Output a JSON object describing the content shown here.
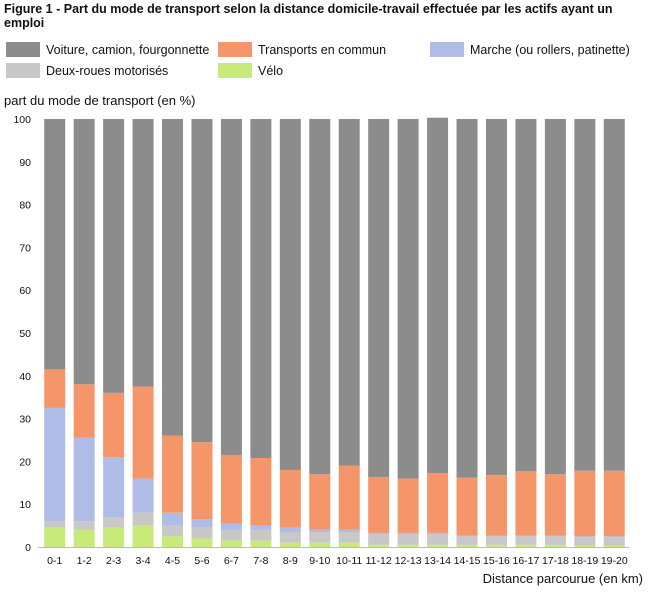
{
  "title": "Figure 1 - Part du mode de transport selon la distance domicile-travail effectuée par les actifs ayant un emploi",
  "chart_data": {
    "type": "bar",
    "stacked": true,
    "ylabel": "part du mode de transport (en %)",
    "xlabel": "Distance parcourue (en km)",
    "ylim": [
      0,
      100
    ],
    "yticks": [
      0,
      10,
      20,
      30,
      40,
      50,
      60,
      70,
      80,
      90,
      100
    ],
    "grid": false,
    "legend_position": "top",
    "categories": [
      "0-1",
      "1-2",
      "2-3",
      "3-4",
      "4-5",
      "5-6",
      "6-7",
      "7-8",
      "8-9",
      "9-10",
      "10-11",
      "11-12",
      "12-13",
      "13-14",
      "14-15",
      "15-16",
      "16-17",
      "17-18",
      "18-19",
      "19-20"
    ],
    "series": [
      {
        "name": "Vélo",
        "color": "#c8ea7a",
        "values": [
          4.5,
          4.0,
          4.5,
          5.0,
          2.5,
          2.0,
          1.5,
          1.5,
          1.0,
          1.0,
          1.0,
          0.5,
          0.5,
          0.5,
          0.5,
          0.5,
          0.5,
          0.5,
          0.3,
          0.3
        ]
      },
      {
        "name": "Deux-roues motorisés",
        "color": "#c8c8c8",
        "values": [
          1.5,
          2.0,
          2.5,
          3.0,
          2.5,
          2.5,
          2.5,
          2.5,
          2.5,
          2.5,
          2.5,
          2.5,
          2.5,
          2.5,
          2.0,
          2.0,
          2.0,
          2.0,
          2.0,
          2.0
        ]
      },
      {
        "name": "Marche (ou rollers, patinette)",
        "color": "#aebce6",
        "values": [
          26.5,
          19.5,
          14.0,
          8.0,
          3.0,
          2.0,
          1.5,
          1.0,
          1.0,
          0.5,
          0.5,
          0.3,
          0.3,
          0.3,
          0.2,
          0.2,
          0.2,
          0.2,
          0.2,
          0.2
        ]
      },
      {
        "name": "Transports en commun",
        "color": "#f5966a",
        "values": [
          9.0,
          12.5,
          15.0,
          21.5,
          18.0,
          18.0,
          16.0,
          15.8,
          13.5,
          13.0,
          15.0,
          13.0,
          12.7,
          14.0,
          13.5,
          14.1,
          15.0,
          14.3,
          15.3,
          15.3
        ]
      },
      {
        "name": "Voiture, camion, fourgonnette",
        "color": "#8c8c8c",
        "values": [
          58.5,
          62.0,
          64.0,
          62.5,
          74.0,
          75.5,
          78.5,
          79.2,
          82.0,
          83.0,
          81.0,
          83.7,
          84.0,
          83.0,
          83.8,
          83.2,
          82.3,
          83.0,
          82.2,
          82.2
        ]
      }
    ]
  },
  "legend": {
    "car": "Voiture, camion, fourgonnette",
    "transit": "Transports en commun",
    "walk": "Marche (ou rollers, patinette)",
    "moto": "Deux-roues motorisés",
    "bike": "Vélo"
  },
  "colors": {
    "car": "#8c8c8c",
    "transit": "#f5966a",
    "walk": "#aebce6",
    "moto": "#c8c8c8",
    "bike": "#c8ea7a"
  }
}
